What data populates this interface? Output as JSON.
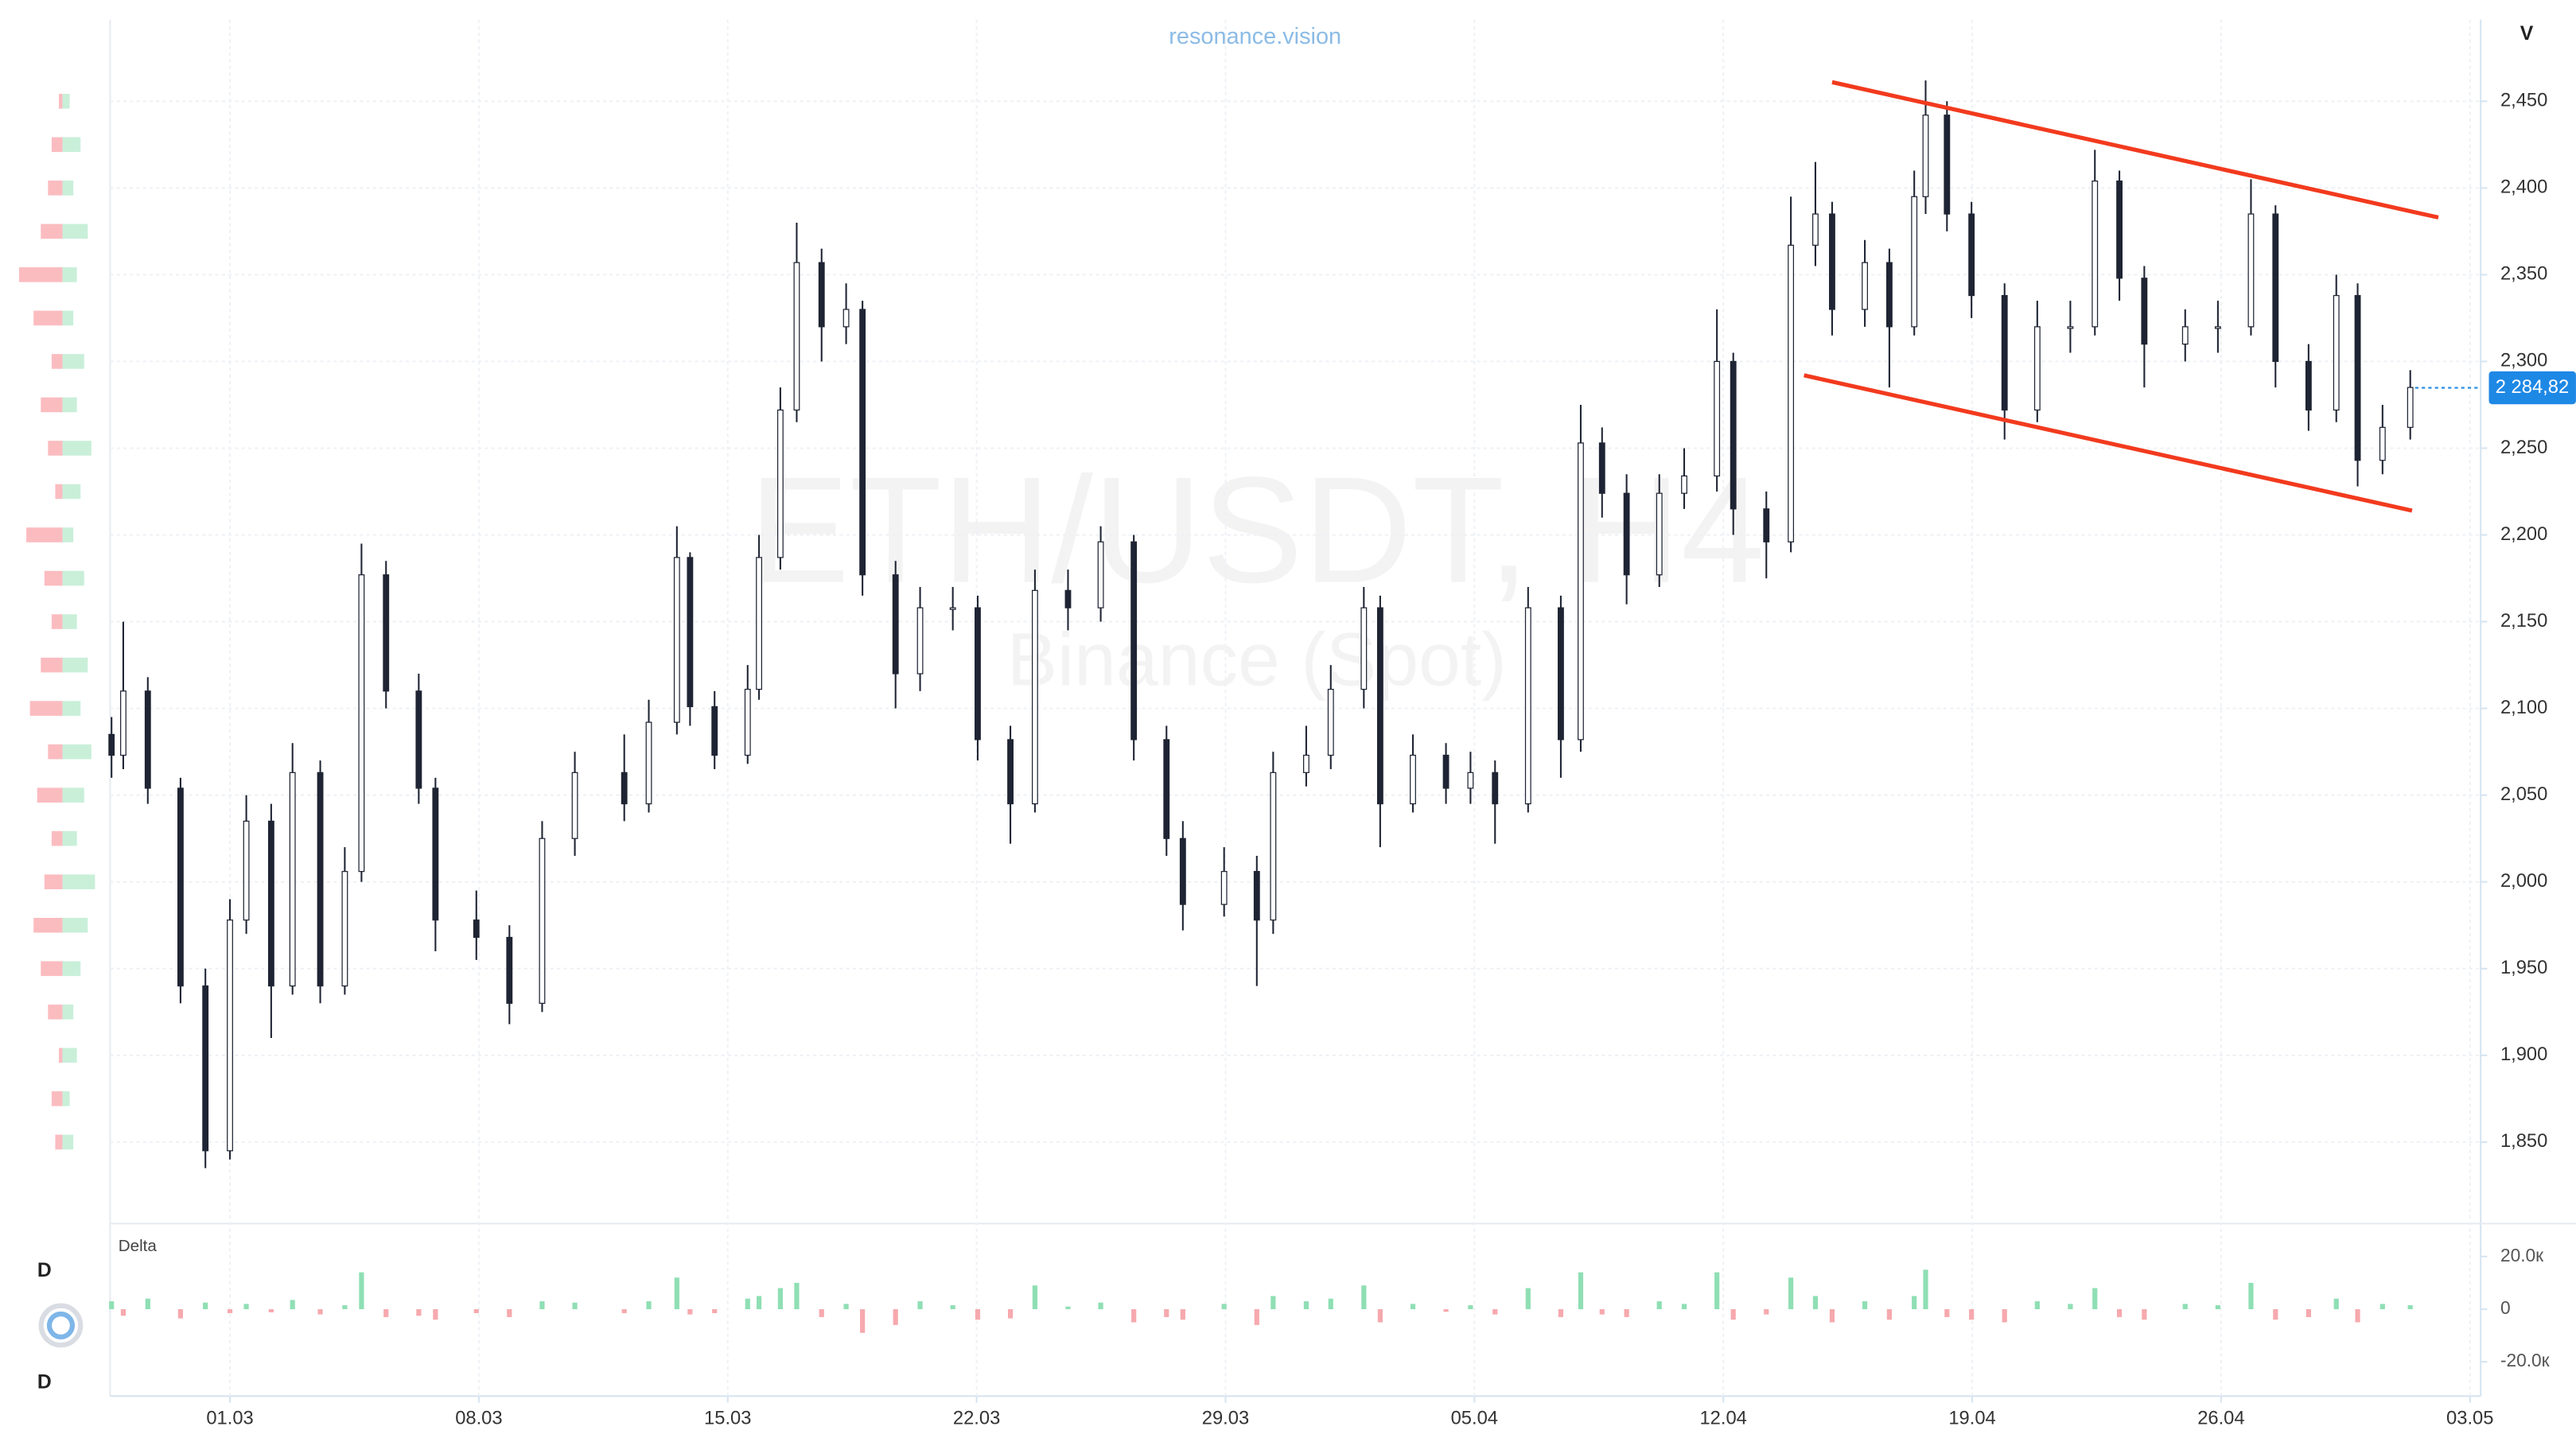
{
  "chart_data": [
    {
      "type": "candlestick",
      "title": "resonance.vision",
      "watermark": "ETH/USDT, H4",
      "subtitle": "Binance (Spot)",
      "axis_label": "V",
      "x": [
        -3.33,
        -3.0,
        -2.31,
        -1.39,
        -0.69,
        0,
        0.46,
        1.16,
        1.76,
        2.54,
        3.23,
        3.7,
        4.39,
        5.31,
        5.78,
        6.93,
        7.86,
        8.78,
        9.7,
        11.09,
        11.78,
        12.57,
        12.94,
        13.63,
        14.56,
        14.88,
        15.48,
        15.94,
        16.64,
        17.33,
        17.79,
        18.72,
        19.41,
        20.33,
        21.03,
        21.95,
        22.64,
        23.57,
        24.49,
        25.42,
        26.34,
        26.8,
        27.96,
        28.88,
        29.34,
        30.27,
        30.96,
        31.89,
        32.35,
        33.27,
        34.2,
        34.89,
        35.58,
        36.51,
        37.43,
        37.99,
        38.59,
        39.28,
        40.2,
        40.9,
        41.82,
        42.28,
        43.21,
        43.9,
        44.59,
        45.06,
        45.98,
        46.67,
        47.37,
        47.69,
        48.29,
        48.98,
        49.91,
        50.83,
        51.76,
        52.45,
        53.14,
        53.84,
        54.99,
        55.91,
        56.84,
        57.53,
        58.46,
        59.24,
        59.84,
        60.54,
        61.32
      ],
      "open": [
        2085,
        2073,
        2110,
        2054,
        1940,
        1845,
        1978,
        2035,
        1940,
        2063,
        1940,
        2006,
        2177,
        2110,
        2054,
        1978,
        1968,
        1930,
        2025,
        2063,
        2045,
        2092,
        2187,
        2101,
        2073,
        2111,
        2187,
        2272,
        2357,
        2320,
        2330,
        2177,
        2120,
        2158,
        2158,
        2082,
        2045,
        2168,
        2158,
        2196,
        2082,
        2025,
        1987,
        2006,
        1978,
        2063,
        2073,
        2111,
        2158,
        2045,
        2073,
        2054,
        2063,
        2045,
        2158,
        2082,
        2253,
        2224,
        2177,
        2224,
        2234,
        2300,
        2215,
        2196,
        2367,
        2385,
        2330,
        2357,
        2320,
        2395,
        2442,
        2385,
        2338,
        2272,
        2320,
        2320,
        2404,
        2348,
        2310,
        2320,
        2320,
        2385,
        2300,
        2272,
        2338,
        2243,
        2262
      ],
      "high": [
        2095,
        2150,
        2118,
        2060,
        1950,
        1990,
        2050,
        2045,
        2080,
        2070,
        2020,
        2195,
        2185,
        2120,
        2060,
        1995,
        1975,
        2035,
        2075,
        2085,
        2105,
        2205,
        2190,
        2110,
        2125,
        2200,
        2285,
        2380,
        2365,
        2345,
        2335,
        2185,
        2170,
        2170,
        2165,
        2090,
        2180,
        2180,
        2205,
        2200,
        2090,
        2035,
        2020,
        2015,
        2075,
        2090,
        2125,
        2170,
        2165,
        2085,
        2080,
        2075,
        2070,
        2170,
        2165,
        2275,
        2262,
        2235,
        2235,
        2250,
        2330,
        2305,
        2225,
        2395,
        2415,
        2392,
        2370,
        2365,
        2410,
        2462,
        2450,
        2392,
        2345,
        2335,
        2335,
        2422,
        2410,
        2355,
        2330,
        2335,
        2405,
        2390,
        2310,
        2350,
        2345,
        2275,
        2295
      ],
      "low": [
        2060,
        2065,
        2045,
        1930,
        1835,
        1840,
        1970,
        1910,
        1935,
        1930,
        1935,
        2000,
        2100,
        2045,
        1960,
        1955,
        1918,
        1925,
        2015,
        2035,
        2040,
        2085,
        2090,
        2065,
        2068,
        2105,
        2180,
        2265,
        2300,
        2310,
        2165,
        2100,
        2110,
        2145,
        2070,
        2022,
        2040,
        2145,
        2150,
        2070,
        2015,
        1972,
        1980,
        1940,
        1970,
        2055,
        2065,
        2100,
        2020,
        2040,
        2045,
        2045,
        2022,
        2040,
        2060,
        2075,
        2210,
        2160,
        2170,
        2215,
        2225,
        2200,
        2175,
        2190,
        2355,
        2315,
        2320,
        2285,
        2315,
        2385,
        2375,
        2325,
        2255,
        2265,
        2305,
        2315,
        2335,
        2285,
        2300,
        2305,
        2315,
        2285,
        2260,
        2265,
        2228,
        2235,
        2255
      ],
      "close": [
        2073,
        2110,
        2054,
        1940,
        1845,
        1978,
        2035,
        1940,
        2063,
        1940,
        2006,
        2177,
        2110,
        2054,
        1978,
        1968,
        1930,
        2025,
        2063,
        2045,
        2092,
        2187,
        2101,
        2073,
        2111,
        2187,
        2272,
        2357,
        2320,
        2330,
        2177,
        2120,
        2158,
        2158,
        2082,
        2045,
        2168,
        2158,
        2196,
        2082,
        2025,
        1987,
        2006,
        1978,
        2063,
        2073,
        2111,
        2158,
        2045,
        2073,
        2054,
        2063,
        2045,
        2158,
        2082,
        2253,
        2224,
        2177,
        2224,
        2234,
        2300,
        2215,
        2196,
        2367,
        2385,
        2330,
        2357,
        2320,
        2395,
        2442,
        2385,
        2338,
        2272,
        2320,
        2320,
        2404,
        2348,
        2310,
        2320,
        2320,
        2385,
        2300,
        2272,
        2338,
        2243,
        2262,
        2285
      ],
      "up_color": "#ffffff",
      "down_color": "#1e2433",
      "wick_color": "#1e2433",
      "xlim": [
        -3.37,
        63.3
      ],
      "xticks": [
        {
          "value": 0,
          "label": "01.03"
        },
        {
          "value": 7,
          "label": "08.03"
        },
        {
          "value": 14,
          "label": "15.03"
        },
        {
          "value": 21,
          "label": "22.03"
        },
        {
          "value": 28,
          "label": "29.03"
        },
        {
          "value": 35,
          "label": "05.04"
        },
        {
          "value": 42,
          "label": "12.04"
        },
        {
          "value": 49,
          "label": "19.04"
        },
        {
          "value": 56,
          "label": "26.04"
        },
        {
          "value": 63,
          "label": "03.05"
        }
      ],
      "ylim": [
        1803,
        2497
      ],
      "yticks": [
        {
          "value": 1850,
          "label": "1,850"
        },
        {
          "value": 1900,
          "label": "1,900"
        },
        {
          "value": 1950,
          "label": "1,950"
        },
        {
          "value": 2000,
          "label": "2,000"
        },
        {
          "value": 2050,
          "label": "2,050"
        },
        {
          "value": 2100,
          "label": "2,100"
        },
        {
          "value": 2150,
          "label": "2,150"
        },
        {
          "value": 2200,
          "label": "2,200"
        },
        {
          "value": 2250,
          "label": "2,250"
        },
        {
          "value": 2300,
          "label": "2,300"
        },
        {
          "value": 2350,
          "label": "2,350"
        },
        {
          "value": 2400,
          "label": "2,400"
        },
        {
          "value": 2450,
          "label": "2,450"
        }
      ],
      "grid": true,
      "last_price": {
        "value": 2284.82,
        "label": "2 284,82"
      },
      "last_price_color": "#1e88e5",
      "trendlines": [
        {
          "x": [
            45.06,
            62.11
          ],
          "y": [
            2461,
            2383
          ]
        },
        {
          "x": [
            44.27,
            61.37
          ],
          "y": [
            2292,
            2214
          ]
        }
      ],
      "trendline_color": "#f23a1e"
    },
    {
      "type": "bar",
      "title": "Delta",
      "pane_markers": [
        "D",
        "D"
      ],
      "values": [
        3000,
        -2500,
        4000,
        -3500,
        2500,
        -1500,
        2000,
        -1200,
        3500,
        -2000,
        1500,
        14000,
        -3000,
        -2500,
        -4000,
        -1500,
        -3000,
        3000,
        2500,
        -1500,
        3000,
        12000,
        -2000,
        -1500,
        4000,
        5000,
        8000,
        10000,
        -3000,
        2000,
        -9000,
        -6000,
        3000,
        1500,
        -4000,
        -3500,
        9000,
        1000,
        2500,
        -5000,
        -3000,
        -4000,
        2000,
        -6000,
        5000,
        3000,
        4000,
        9000,
        -5000,
        2000,
        -1000,
        1500,
        -2000,
        8000,
        -3000,
        14000,
        -2000,
        -3000,
        3000,
        2000,
        14000,
        -4000,
        -2000,
        12000,
        5000,
        -5000,
        3000,
        -4000,
        5000,
        15000,
        -3000,
        -4000,
        -5000,
        3000,
        2000,
        8000,
        -3000,
        -4000,
        2000,
        1500,
        10000,
        -4000,
        -3000,
        4000,
        -5000,
        2000,
        1500
      ],
      "positive_color": "#8fdfb4",
      "negative_color": "#f6a9ae",
      "ylim": [
        -33000,
        32500
      ],
      "yticks": [
        {
          "value": 20000,
          "label": "20.0к"
        },
        0,
        {
          "value": -20000,
          "label": "-20.0к"
        }
      ]
    },
    {
      "type": "profile",
      "levels": [
        1850,
        1875,
        1900,
        1925,
        1950,
        1975,
        2000,
        2025,
        2050,
        2075,
        2100,
        2125,
        2150,
        2175,
        2200,
        2225,
        2250,
        2275,
        2300,
        2325,
        2350,
        2375,
        2400,
        2425,
        2450
      ],
      "buy": [
        3,
        2,
        4,
        3,
        5,
        7,
        9,
        4,
        6,
        8,
        5,
        7,
        4,
        6,
        3,
        5,
        8,
        4,
        6,
        3,
        4,
        7,
        3,
        5,
        2
      ],
      "sell": [
        2,
        3,
        1,
        4,
        6,
        8,
        5,
        3,
        7,
        4,
        9,
        6,
        3,
        5,
        10,
        2,
        4,
        6,
        3,
        8,
        12,
        6,
        4,
        3,
        1
      ],
      "buy_color": "#c9efd9",
      "sell_color": "#fbbcc0"
    }
  ]
}
